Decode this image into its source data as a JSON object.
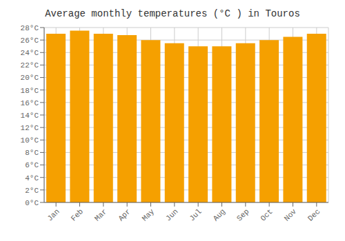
{
  "chart_data": {
    "type": "bar",
    "title": "Average monthly temperatures (°C ) in Touros",
    "categories": [
      "Jan",
      "Feb",
      "Mar",
      "Apr",
      "May",
      "Jun",
      "Jul",
      "Aug",
      "Sep",
      "Oct",
      "Nov",
      "Dec"
    ],
    "values": [
      27.0,
      27.5,
      27.0,
      26.8,
      26.0,
      25.5,
      25.0,
      25.0,
      25.5,
      26.0,
      26.5,
      27.0
    ],
    "color": "#F5A000",
    "ylim": [
      0,
      28
    ],
    "yticks": [
      {
        "value": 0,
        "label": "0°C"
      },
      {
        "value": 2,
        "label": "2°C"
      },
      {
        "value": 4,
        "label": "4°C"
      },
      {
        "value": 6,
        "label": "6°C"
      },
      {
        "value": 8,
        "label": "8°C"
      },
      {
        "value": 10,
        "label": "10°C"
      },
      {
        "value": 12,
        "label": "12°C"
      },
      {
        "value": 14,
        "label": "14°C"
      },
      {
        "value": 16,
        "label": "16°C"
      },
      {
        "value": 18,
        "label": "18°C"
      },
      {
        "value": 20,
        "label": "20°C"
      },
      {
        "value": 22,
        "label": "22°C"
      },
      {
        "value": 24,
        "label": "24°C"
      },
      {
        "value": 26,
        "label": "26°C"
      },
      {
        "value": 28,
        "label": "28°C"
      }
    ],
    "grid": true
  }
}
